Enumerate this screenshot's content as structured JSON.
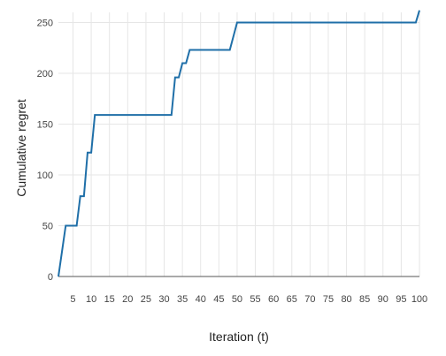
{
  "chart_data": {
    "type": "line",
    "title": "",
    "xlabel": "Iteration (t)",
    "ylabel": "Cumulative regret",
    "xlim": [
      1,
      100
    ],
    "ylim": [
      0,
      260
    ],
    "x_ticks": [
      5,
      10,
      15,
      20,
      25,
      30,
      35,
      40,
      45,
      50,
      55,
      60,
      65,
      70,
      75,
      80,
      85,
      90,
      95,
      100
    ],
    "y_ticks": [
      0,
      50,
      100,
      150,
      200,
      250
    ],
    "grid": true,
    "legend": "none",
    "series": [
      {
        "color": "#1f6fa8",
        "points": [
          [
            1,
            0
          ],
          [
            3,
            50
          ],
          [
            6,
            50
          ],
          [
            7,
            79
          ],
          [
            8,
            79
          ],
          [
            9,
            122
          ],
          [
            10,
            122
          ],
          [
            11,
            159
          ],
          [
            32,
            159
          ],
          [
            33,
            196
          ],
          [
            34,
            196
          ],
          [
            35,
            210
          ],
          [
            36,
            210
          ],
          [
            37,
            223
          ],
          [
            48,
            223
          ],
          [
            50,
            250
          ],
          [
            99,
            250
          ],
          [
            100,
            262
          ]
        ]
      }
    ]
  }
}
